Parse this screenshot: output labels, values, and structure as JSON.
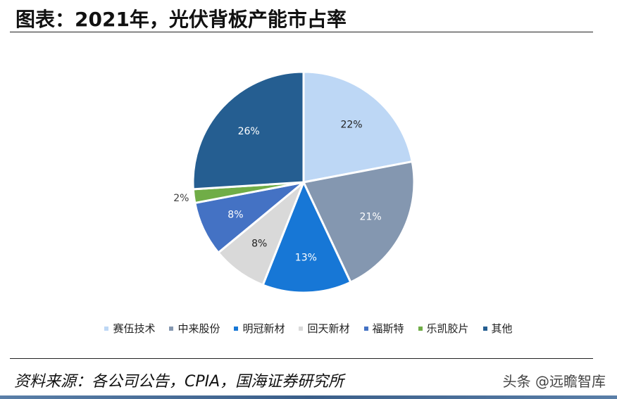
{
  "header": {
    "title": "图表：2021年，光伏背板产能市占率"
  },
  "chart_data": {
    "type": "pie",
    "title": "2021年，光伏背板产能市占率",
    "categories": [
      "赛伍技术",
      "中来股份",
      "明冠新材",
      "回天新材",
      "福斯特",
      "乐凯胶片",
      "其他"
    ],
    "values": [
      22,
      21,
      13,
      8,
      8,
      2,
      26
    ],
    "labels": [
      "22%",
      "21%",
      "13%",
      "8%",
      "8%",
      "2%",
      "26%"
    ],
    "colors": [
      "#BDD7F5",
      "#8497B0",
      "#1777D6",
      "#D9D9D9",
      "#4472C4",
      "#70AD47",
      "#255E91"
    ],
    "label_colors": [
      "#222222",
      "#ffffff",
      "#ffffff",
      "#222222",
      "#ffffff",
      "#404040",
      "#ffffff"
    ],
    "start_angle_deg": 0,
    "direction": "clockwise",
    "legend_position": "bottom",
    "units": "%"
  },
  "legend": {
    "items": [
      {
        "label": "赛伍技术",
        "color": "#BDD7F5"
      },
      {
        "label": "中来股份",
        "color": "#8497B0"
      },
      {
        "label": "明冠新材",
        "color": "#1777D6"
      },
      {
        "label": "回天新材",
        "color": "#D9D9D9"
      },
      {
        "label": "福斯特",
        "color": "#4472C4"
      },
      {
        "label": "乐凯胶片",
        "color": "#70AD47"
      },
      {
        "label": "其他",
        "color": "#255E91"
      }
    ]
  },
  "footer": {
    "source": "资料来源：各公司公告，CPIA，国海证券研究所",
    "watermark": "头条 @远瞻智库"
  }
}
